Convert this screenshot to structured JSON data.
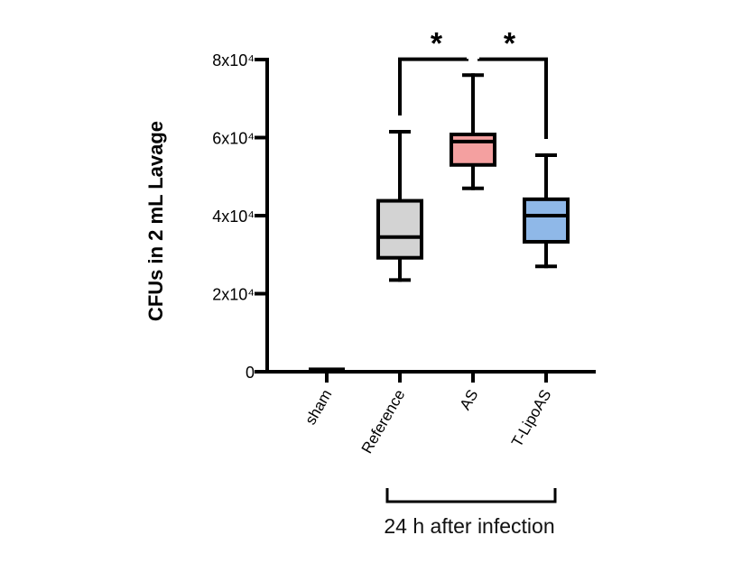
{
  "chart_data": {
    "type": "box",
    "ylabel": "CFUs in 2 mL Lavage",
    "ylim": [
      0,
      80000
    ],
    "yticks": [
      {
        "value": 0,
        "label": "0"
      },
      {
        "value": 20000,
        "label": "2x10⁴"
      },
      {
        "value": 40000,
        "label": "4x10⁴"
      },
      {
        "value": 60000,
        "label": "6x10⁴"
      },
      {
        "value": 80000,
        "label": "8x10⁴"
      }
    ],
    "categories": [
      "sham",
      "Reference",
      "AS",
      "T-LipoAS"
    ],
    "boxes": [
      {
        "category": "sham",
        "min": 0,
        "q1": 0,
        "median": 0,
        "q3": 0,
        "max": 500,
        "color": "#000000"
      },
      {
        "category": "Reference",
        "min": 23500,
        "q1": 29200,
        "median": 34500,
        "q3": 43800,
        "max": 61500,
        "color": "#d3d3d3"
      },
      {
        "category": "AS",
        "min": 47000,
        "q1": 53000,
        "median": 59000,
        "q3": 60800,
        "max": 76000,
        "color": "#f4a0a0"
      },
      {
        "category": "T-LipoAS",
        "min": 27000,
        "q1": 33300,
        "median": 40000,
        "q3": 44200,
        "max": 55500,
        "color": "#8fb8e8"
      }
    ],
    "significance": [
      {
        "from": "Reference",
        "to": "AS",
        "label": "*",
        "y": 81000
      },
      {
        "from": "AS",
        "to": "T-LipoAS",
        "label": "*",
        "y": 81000
      }
    ],
    "group_bracket": {
      "from": "Reference",
      "to": "T-LipoAS",
      "label": "24 h after infection"
    }
  }
}
